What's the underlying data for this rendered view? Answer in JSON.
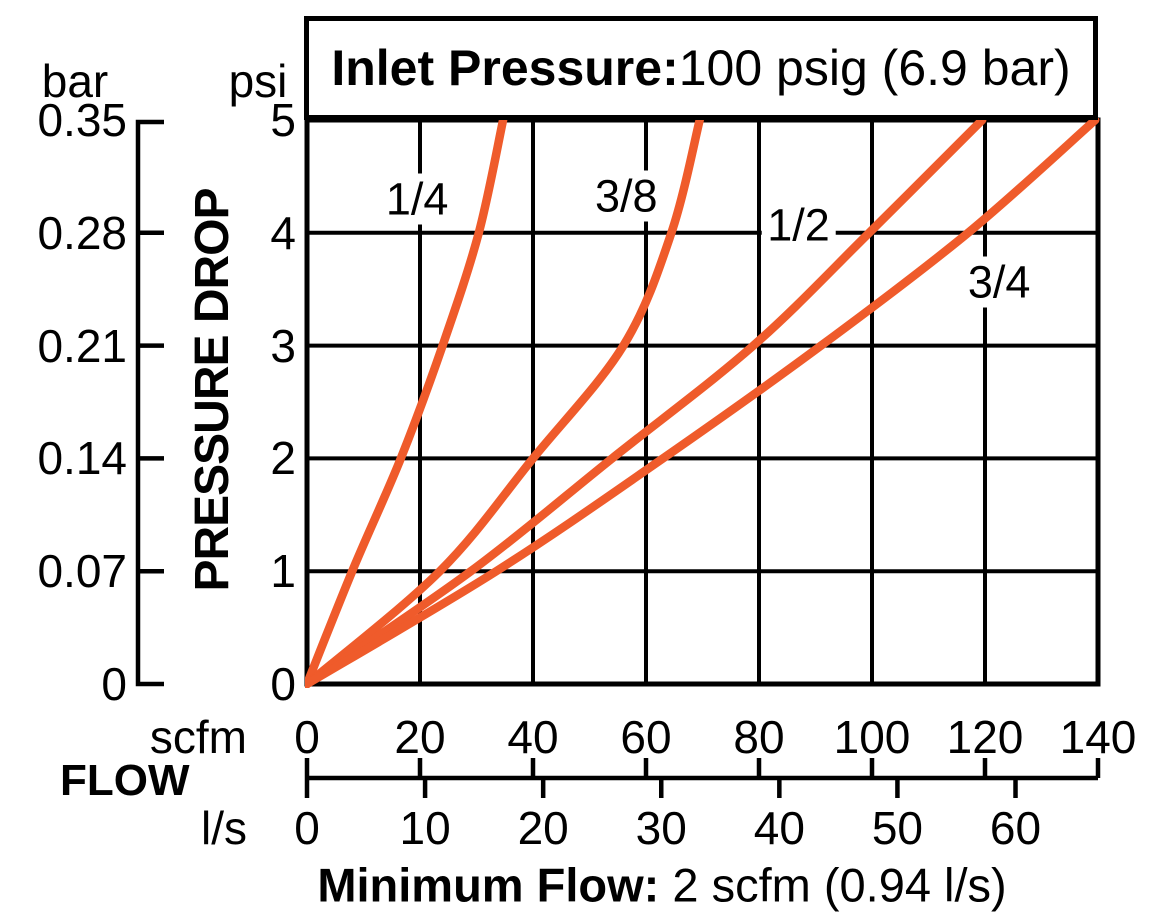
{
  "title": {
    "label_bold": "Inlet Pressure:",
    "label_rest": " 100 psig (6.9 bar)"
  },
  "y_axis": {
    "title": "PRESSURE DROP",
    "primary_unit": "psi",
    "primary_ticks": [
      "5",
      "4",
      "3",
      "2",
      "1",
      "0"
    ],
    "secondary_unit": "bar",
    "secondary_ticks": [
      "0.35",
      "0.28",
      "0.21",
      "0.14",
      "0.07",
      "0"
    ]
  },
  "x_axis": {
    "title": "FLOW",
    "primary_unit": "scfm",
    "primary_ticks": [
      0,
      20,
      40,
      60,
      80,
      100,
      120,
      140
    ],
    "secondary_unit": "l/s",
    "secondary_ticks": [
      0,
      10,
      20,
      30,
      40,
      50,
      60
    ]
  },
  "note": {
    "label_bold": "Minimum Flow:",
    "label_rest": " 2 scfm (0.94 l/s)"
  },
  "chart_data": {
    "type": "line",
    "title": "Inlet Pressure: 100 psig (6.9 bar)",
    "xlabel": "FLOW (scfm)",
    "ylabel": "PRESSURE DROP (psi)",
    "xlim": [
      0,
      140
    ],
    "ylim": [
      0,
      5
    ],
    "grid": true,
    "line_color": "#EF5B2B",
    "grid_color": "#000000",
    "x_secondary": {
      "unit": "l/s",
      "ticks": [
        0,
        10,
        20,
        30,
        40,
        50,
        60
      ],
      "scfm_per_ls": 2.09
    },
    "y_secondary": {
      "unit": "bar",
      "ticks": [
        0.35,
        0.28,
        0.21,
        0.14,
        0.07,
        0
      ],
      "bar_per_psi": 0.07
    },
    "series": [
      {
        "name": "1/4",
        "points_scfm_psi": [
          [
            0,
            0
          ],
          [
            8,
            1
          ],
          [
            16.6,
            2
          ],
          [
            24,
            3
          ],
          [
            30.4,
            4
          ],
          [
            34.7,
            5
          ]
        ],
        "label_at": [
          19.5,
          4.3
        ]
      },
      {
        "name": "3/8",
        "points_scfm_psi": [
          [
            0,
            0
          ],
          [
            23.5,
            1
          ],
          [
            40,
            2
          ],
          [
            56,
            3
          ],
          [
            64.5,
            4
          ],
          [
            69.5,
            5
          ]
        ],
        "label_at": [
          56.5,
          4.33
        ]
      },
      {
        "name": "1/2",
        "points_scfm_psi": [
          [
            0,
            0
          ],
          [
            29,
            1
          ],
          [
            54,
            2
          ],
          [
            79,
            3
          ],
          [
            99.5,
            4
          ],
          [
            119.5,
            5
          ]
        ],
        "label_at": [
          87,
          4.07
        ]
      },
      {
        "name": "3/4",
        "points_scfm_psi": [
          [
            0,
            0
          ],
          [
            33.5,
            1
          ],
          [
            63,
            2
          ],
          [
            91,
            3
          ],
          [
            117,
            4
          ],
          [
            139.5,
            5
          ]
        ],
        "label_at": [
          122.5,
          3.56
        ]
      }
    ]
  }
}
